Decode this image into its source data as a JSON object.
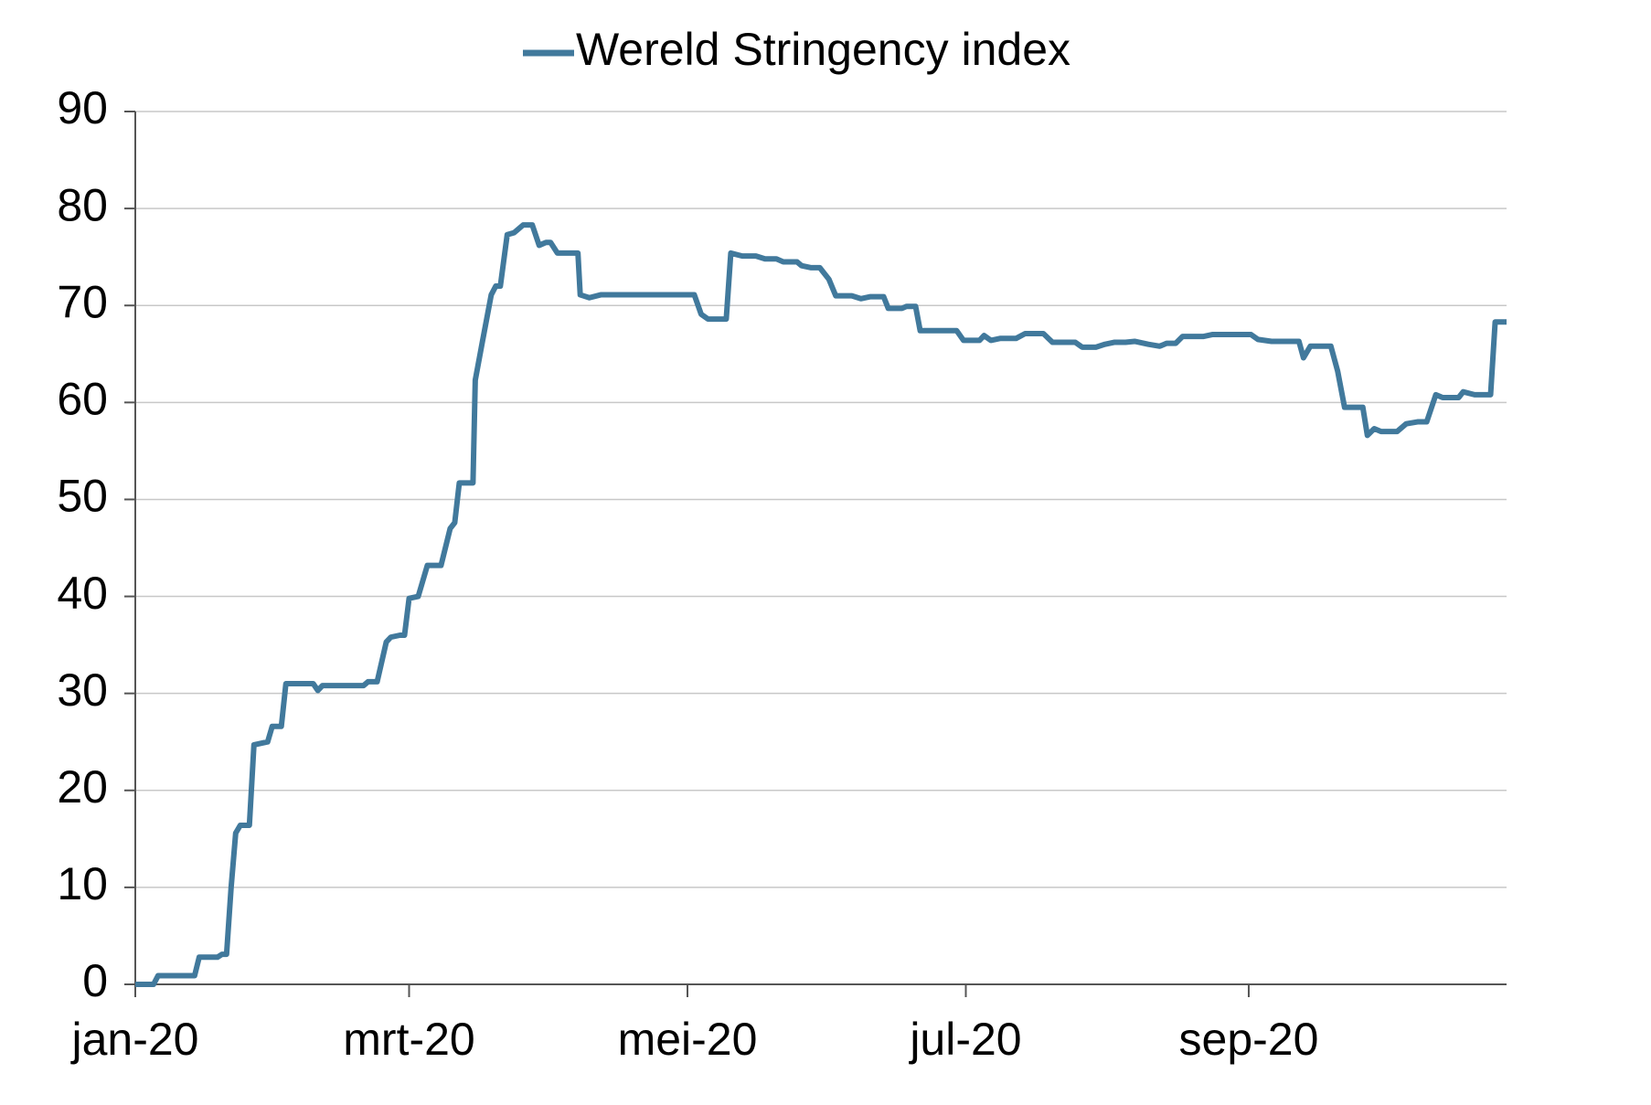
{
  "chart_data": {
    "type": "line",
    "series": [
      {
        "name": "Wereld Stringency index",
        "color": "#41799c",
        "x": [
          0,
          4,
          5,
          13,
          14,
          18,
          19,
          20,
          21,
          22,
          23,
          25,
          26,
          29,
          30,
          32,
          33,
          39,
          40,
          41,
          50,
          51,
          53,
          55,
          56,
          58,
          59,
          60,
          62,
          64,
          67,
          69,
          70,
          71,
          74,
          74.5,
          76,
          78,
          79,
          80,
          81.5,
          83,
          85,
          87,
          88.5,
          90,
          91,
          92.5,
          97,
          97.5,
          99.5,
          102,
          122.5,
          124,
          125.5,
          129.5,
          130.5,
          133,
          136,
          138,
          140.5,
          142,
          145,
          146,
          148,
          150,
          152,
          153.5,
          157,
          159,
          161,
          164,
          165,
          168,
          169,
          171,
          172,
          180,
          181.5,
          185,
          186,
          187.5,
          189.5,
          193,
          195,
          199,
          201,
          206,
          207.5,
          210.5,
          212.5,
          214.5,
          217,
          219,
          222,
          224.5,
          226,
          228,
          229.5,
          234,
          236,
          242.5,
          244.5,
          246,
          249,
          255,
          256,
          257.5,
          262,
          263.5,
          265,
          269,
          270,
          271.5,
          273,
          276.5,
          278.5,
          281,
          283,
          285,
          286.5,
          290,
          291,
          293.5,
          297,
          298,
          300.5
        ],
        "values": [
          0,
          0,
          0.9,
          0.9,
          2.8,
          2.8,
          3.1,
          3.1,
          10,
          15.6,
          16.4,
          16.4,
          24.7,
          25,
          26.6,
          26.6,
          31,
          31,
          30.3,
          30.8,
          30.8,
          31.2,
          31.2,
          35.3,
          35.8,
          36,
          36,
          39.8,
          40,
          43.2,
          43.2,
          47,
          47.6,
          51.7,
          51.7,
          62.3,
          66.1,
          71.1,
          72,
          72,
          77.3,
          77.5,
          78.3,
          78.3,
          76.2,
          76.5,
          76.5,
          75.4,
          75.4,
          71.1,
          70.8,
          71.1,
          71.1,
          69.1,
          68.6,
          68.6,
          75.4,
          75.1,
          75.1,
          74.8,
          74.8,
          74.5,
          74.5,
          74.1,
          73.9,
          73.9,
          72.7,
          71,
          71,
          70.7,
          70.9,
          70.9,
          69.7,
          69.7,
          69.9,
          69.9,
          67.4,
          67.4,
          66.4,
          66.4,
          66.9,
          66.4,
          66.6,
          66.6,
          67.1,
          67.1,
          66.2,
          66.2,
          65.7,
          65.7,
          66,
          66.2,
          66.2,
          66.3,
          66,
          65.8,
          66.1,
          66.1,
          66.8,
          66.8,
          67,
          67,
          67,
          66.5,
          66.3,
          66.3,
          64.6,
          65.8,
          65.8,
          63.2,
          59.5,
          59.5,
          56.6,
          57.3,
          57,
          57,
          57.8,
          58,
          58,
          60.8,
          60.5,
          60.5,
          61.1,
          60.8,
          60.8,
          68.3,
          68.3
        ]
      }
    ],
    "xlim": [
      0,
      300.5
    ],
    "xticks": [
      {
        "value": 0,
        "label": "jan-20"
      },
      {
        "value": 60,
        "label": "mrt-20"
      },
      {
        "value": 121,
        "label": "mei-20"
      },
      {
        "value": 182,
        "label": "jul-20"
      },
      {
        "value": 244,
        "label": "sep-20"
      }
    ],
    "ylim": [
      0,
      90
    ],
    "yticks": [
      0,
      10,
      20,
      30,
      40,
      50,
      60,
      70,
      80,
      90
    ],
    "grid": true,
    "legend": "top"
  }
}
